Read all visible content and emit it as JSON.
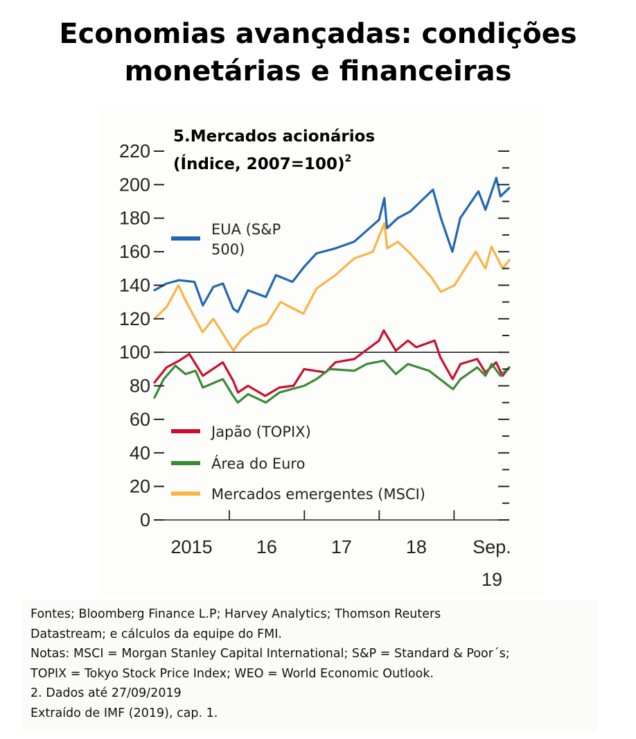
{
  "slide": {
    "title_line1": "Economias avançadas: condições",
    "title_line2": "monetárias e financeiras"
  },
  "chart_data": {
    "type": "line",
    "title_line1": "5.Mercados acionários",
    "title_line2": "(Índice, 2007=100)",
    "title_superscript": "2",
    "ylim": [
      0,
      220
    ],
    "yticks": [
      0,
      20,
      40,
      60,
      80,
      100,
      120,
      140,
      160,
      180,
      200,
      220
    ],
    "xlim": [
      "2015-01-01",
      "2019-09-27"
    ],
    "xtick_positions": [
      "2016-01-01",
      "2017-01-01",
      "2018-01-01",
      "2019-01-01"
    ],
    "xtick_labels": [
      {
        "label": "2015",
        "date": "2015-07-01"
      },
      {
        "label": "16",
        "date": "2016-07-01"
      },
      {
        "label": "17",
        "date": "2017-07-01"
      },
      {
        "label": "18",
        "date": "2018-07-01"
      },
      {
        "label": "Sep.",
        "date": "2019-09-01"
      },
      {
        "label": "19",
        "date": "2019-09-01"
      }
    ],
    "reference_line": 100,
    "series": [
      {
        "name": "EUA (S&P 500)",
        "legend_lines": [
          "EUA (S&P",
          "500)"
        ],
        "color": "#2166b3",
        "points": [
          [
            "2015-01-01",
            137
          ],
          [
            "2015-03-01",
            141
          ],
          [
            "2015-05-01",
            143
          ],
          [
            "2015-07-15",
            142
          ],
          [
            "2015-08-25",
            128
          ],
          [
            "2015-10-15",
            139
          ],
          [
            "2015-12-01",
            141
          ],
          [
            "2016-01-20",
            126
          ],
          [
            "2016-02-11",
            124
          ],
          [
            "2016-04-01",
            137
          ],
          [
            "2016-06-27",
            133
          ],
          [
            "2016-08-15",
            146
          ],
          [
            "2016-11-04",
            142
          ],
          [
            "2016-12-31",
            151
          ],
          [
            "2017-03-01",
            159
          ],
          [
            "2017-06-01",
            162
          ],
          [
            "2017-09-01",
            166
          ],
          [
            "2017-12-31",
            179
          ],
          [
            "2018-01-26",
            192
          ],
          [
            "2018-02-08",
            174
          ],
          [
            "2018-04-01",
            180
          ],
          [
            "2018-06-01",
            184
          ],
          [
            "2018-09-20",
            197
          ],
          [
            "2018-10-29",
            180
          ],
          [
            "2018-12-24",
            160
          ],
          [
            "2019-01-31",
            180
          ],
          [
            "2019-04-30",
            196
          ],
          [
            "2019-06-03",
            185
          ],
          [
            "2019-07-26",
            204
          ],
          [
            "2019-08-15",
            193
          ],
          [
            "2019-09-27",
            198
          ]
        ]
      },
      {
        "name": "Japão (TOPIX)",
        "color": "#c8102e",
        "points": [
          [
            "2015-01-01",
            82
          ],
          [
            "2015-03-01",
            91
          ],
          [
            "2015-05-01",
            95
          ],
          [
            "2015-06-20",
            99
          ],
          [
            "2015-08-25",
            86
          ],
          [
            "2015-11-30",
            94
          ],
          [
            "2016-01-20",
            83
          ],
          [
            "2016-02-12",
            76
          ],
          [
            "2016-04-01",
            80
          ],
          [
            "2016-06-24",
            74
          ],
          [
            "2016-09-01",
            79
          ],
          [
            "2016-11-09",
            80
          ],
          [
            "2016-12-31",
            90
          ],
          [
            "2017-04-14",
            88
          ],
          [
            "2017-06-01",
            94
          ],
          [
            "2017-09-01",
            96
          ],
          [
            "2017-12-31",
            107
          ],
          [
            "2018-01-23",
            113
          ],
          [
            "2018-03-23",
            101
          ],
          [
            "2018-05-21",
            107
          ],
          [
            "2018-07-01",
            103
          ],
          [
            "2018-09-28",
            107
          ],
          [
            "2018-10-26",
            97
          ],
          [
            "2018-12-25",
            84
          ],
          [
            "2019-02-01",
            93
          ],
          [
            "2019-04-24",
            96
          ],
          [
            "2019-06-03",
            88
          ],
          [
            "2019-07-25",
            94
          ],
          [
            "2019-08-26",
            86
          ],
          [
            "2019-09-27",
            91
          ]
        ]
      },
      {
        "name": "Área do Euro",
        "color": "#3a8a35",
        "points": [
          [
            "2015-01-01",
            73
          ],
          [
            "2015-02-15",
            84
          ],
          [
            "2015-04-13",
            92
          ],
          [
            "2015-06-01",
            87
          ],
          [
            "2015-07-20",
            89
          ],
          [
            "2015-08-25",
            79
          ],
          [
            "2015-11-30",
            84
          ],
          [
            "2016-01-20",
            74
          ],
          [
            "2016-02-11",
            70
          ],
          [
            "2016-04-01",
            75
          ],
          [
            "2016-06-27",
            70
          ],
          [
            "2016-09-01",
            76
          ],
          [
            "2016-12-31",
            80
          ],
          [
            "2017-03-01",
            84
          ],
          [
            "2017-05-05",
            90
          ],
          [
            "2017-09-01",
            89
          ],
          [
            "2017-11-01",
            93
          ],
          [
            "2018-01-23",
            95
          ],
          [
            "2018-03-23",
            87
          ],
          [
            "2018-05-21",
            93
          ],
          [
            "2018-09-01",
            89
          ],
          [
            "2018-12-27",
            78
          ],
          [
            "2019-02-01",
            84
          ],
          [
            "2019-04-24",
            91
          ],
          [
            "2019-06-03",
            86
          ],
          [
            "2019-07-04",
            93
          ],
          [
            "2019-08-15",
            86
          ],
          [
            "2019-09-27",
            91
          ]
        ]
      },
      {
        "name": "Mercados emergentes (MSCI)",
        "color": "#fbb346",
        "points": [
          [
            "2015-01-01",
            120
          ],
          [
            "2015-03-01",
            127
          ],
          [
            "2015-04-28",
            140
          ],
          [
            "2015-06-01",
            131
          ],
          [
            "2015-08-24",
            112
          ],
          [
            "2015-10-15",
            120
          ],
          [
            "2016-01-21",
            101
          ],
          [
            "2016-03-01",
            108
          ],
          [
            "2016-05-01",
            114
          ],
          [
            "2016-07-01",
            117
          ],
          [
            "2016-09-07",
            130
          ],
          [
            "2016-12-27",
            123
          ],
          [
            "2017-03-01",
            138
          ],
          [
            "2017-06-01",
            146
          ],
          [
            "2017-09-01",
            156
          ],
          [
            "2017-12-01",
            160
          ],
          [
            "2018-01-26",
            177
          ],
          [
            "2018-02-09",
            162
          ],
          [
            "2018-04-01",
            166
          ],
          [
            "2018-06-01",
            159
          ],
          [
            "2018-09-11",
            145
          ],
          [
            "2018-10-29",
            136
          ],
          [
            "2019-01-03",
            140
          ],
          [
            "2019-04-17",
            160
          ],
          [
            "2019-06-03",
            150
          ],
          [
            "2019-07-02",
            163
          ],
          [
            "2019-08-26",
            150
          ],
          [
            "2019-09-27",
            155
          ]
        ]
      }
    ]
  },
  "notes": {
    "line1": "Fontes; Bloomberg Finance L.P; Harvey Analytics; Thomson Reuters",
    "line2": "Datastream; e cálculos da equipe do FMI.",
    "line3": "Notas: MSCI = Morgan Stanley Capital International; S&P = Standard & Poor´s;",
    "line4": "TOPIX = Tokyo Stock Price Index; WEO = World Economic Outlook.",
    "line5": "2. Dados até 27/09/2019",
    "line6": "Extraído de IMF (2019), cap. 1."
  }
}
